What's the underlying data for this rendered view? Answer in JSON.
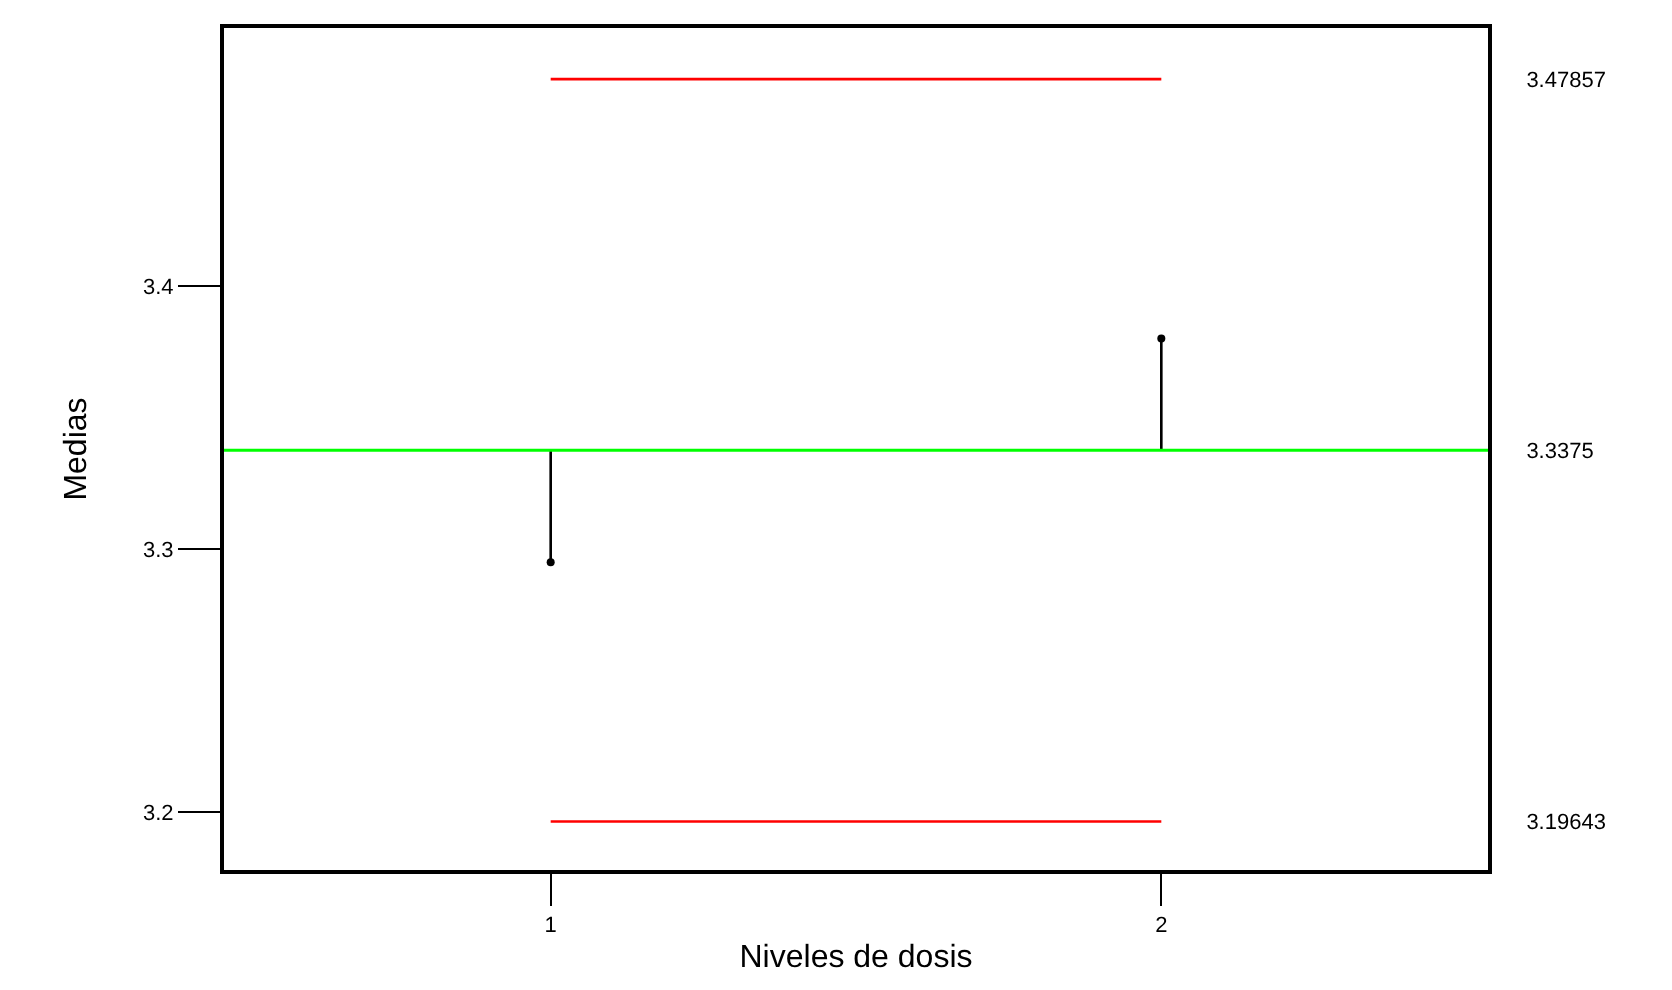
{
  "chart_data": {
    "type": "line",
    "xlabel": "Niveles de dosis",
    "ylabel": "Medias",
    "categories": [
      "1",
      "2"
    ],
    "series": [
      {
        "type": "scatter",
        "marker": "circle",
        "color": "#000000",
        "values": [
          3.295,
          3.38
        ],
        "errors": [
          [
            3.295,
            3.3375
          ],
          [
            3.3375,
            3.38
          ]
        ]
      },
      {
        "color": "#ff0000",
        "values": [
          3.47857,
          3.47857
        ]
      },
      {
        "color": "#ff0000",
        "values": [
          3.19643,
          3.19643
        ]
      }
    ],
    "ref_lines": [
      {
        "axis": "y",
        "value": 3.3375,
        "color": "#00ff00"
      }
    ],
    "ylim": [
      3.178,
      3.498
    ],
    "yticks": [
      3.2,
      3.3,
      3.4
    ],
    "y2lim": [
      3.178,
      3.498
    ],
    "y2ticks": [
      3.19643,
      3.3375,
      3.47857
    ]
  }
}
